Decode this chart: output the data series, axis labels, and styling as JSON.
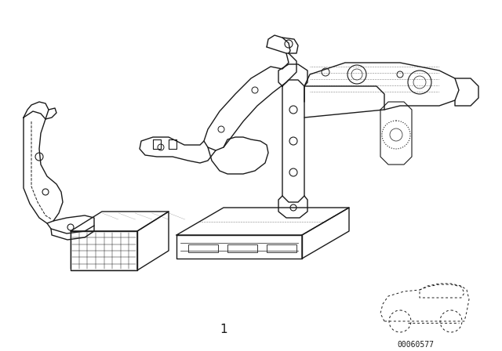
{
  "background_color": "#ffffff",
  "image_number": "1",
  "part_number": "00060577",
  "fig_width": 6.4,
  "fig_height": 4.48,
  "dpi": 100,
  "line_color": "#1a1a1a",
  "line_width": 1.0
}
